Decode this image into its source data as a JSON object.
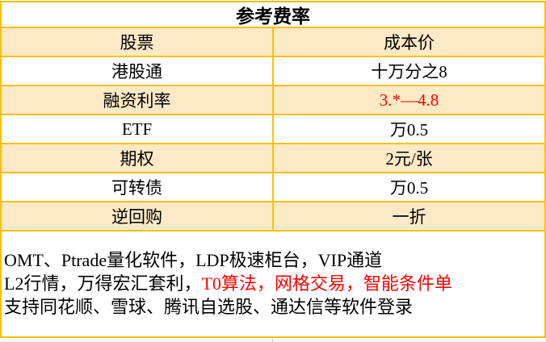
{
  "fee_table": {
    "header": "参考费率",
    "rows": [
      {
        "label": "股票",
        "value": "成本价"
      },
      {
        "label": "港股通",
        "value": "十万分之8"
      },
      {
        "label": "融资利率",
        "value": "3.*—4.8",
        "value_red": true
      },
      {
        "label": "ETF",
        "value": "万0.5"
      },
      {
        "label": "期权",
        "value": "2元/张"
      },
      {
        "label": "可转债",
        "value": "万0.5"
      },
      {
        "label": "逆回购",
        "value": "一折"
      }
    ]
  },
  "notes": {
    "line1": "OMT、Ptrade量化软件，LDP极速柜台，VIP通道",
    "line2_black": "L2行情，万得宏汇套利，",
    "line2_red": "T0算法，网格交易，智能条件单",
    "line3": "支持同花顺、雪球、腾讯自选股、通达信等软件登录"
  },
  "colors": {
    "table_border": "#FFC000",
    "highlight_row_bg": "#FCE9C6",
    "red_text": "#FF0000",
    "gridline": "#C9C9C9"
  }
}
